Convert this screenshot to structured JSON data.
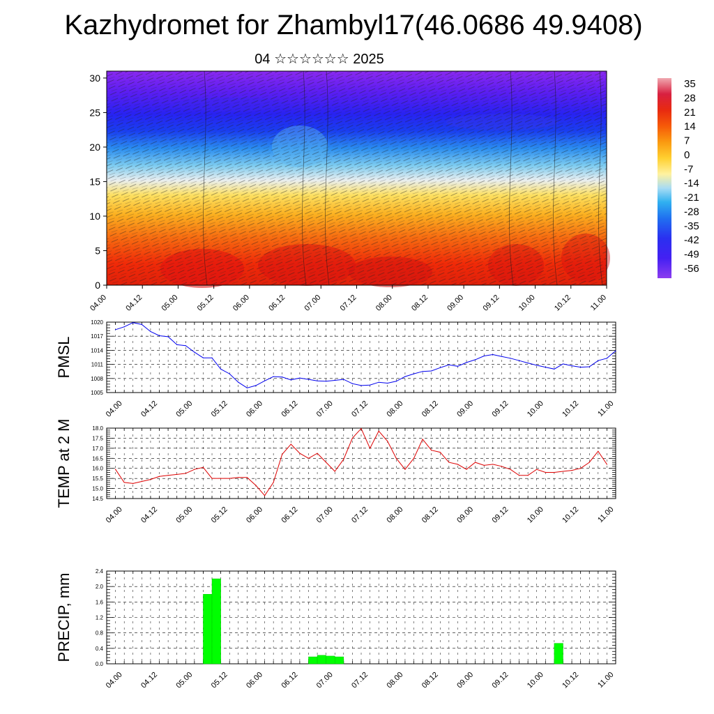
{
  "title": "Kazhydromet for Zhambyl17(46.0686 49.9408)",
  "subtitle": "04 ☆☆☆☆☆☆ 2025",
  "time_labels": [
    "04.00",
    "04.12",
    "05.00",
    "05.12",
    "06.00",
    "06.12",
    "07.00",
    "07.12",
    "08.00",
    "08.12",
    "09.00",
    "09.12",
    "10.00",
    "10.12",
    "11.00"
  ],
  "chart_data": [
    {
      "type": "heatmap",
      "name": "temperature-wind-cross-section",
      "ylim": [
        0,
        31
      ],
      "yticks": [
        0,
        5,
        10,
        15,
        20,
        25,
        30
      ],
      "colorbar": {
        "labels": [
          "35",
          "28",
          "21",
          "14",
          "7",
          "0",
          "-7",
          "-14",
          "-21",
          "-28",
          "-35",
          "-42",
          "-49",
          "-56"
        ],
        "range": [
          -63,
          42
        ]
      }
    },
    {
      "type": "line",
      "name": "pmsl",
      "ylabel": "PMSL",
      "ylim": [
        1005,
        1020
      ],
      "yticks": [
        "1005",
        "1008",
        "1011",
        "1014",
        "1017",
        "1020"
      ],
      "color": "#0000ee",
      "series": [
        {
          "values": [
            1018.4,
            1019.0,
            1019.9,
            1019.5,
            1018.0,
            1017.1,
            1016.9,
            1015.2,
            1015.0,
            1013.6,
            1012.4,
            1012.4,
            1010.0,
            1009.0,
            1007.2,
            1006.0,
            1006.5,
            1007.5,
            1008.4,
            1008.3,
            1007.7,
            1008.1,
            1007.8,
            1007.5,
            1007.4,
            1007.6,
            1007.8,
            1006.9,
            1006.5,
            1006.6,
            1007.2,
            1007.0,
            1007.4,
            1008.4,
            1009.0,
            1009.5,
            1009.6,
            1010.3,
            1010.9,
            1010.6,
            1011.4,
            1012.0,
            1012.8,
            1013.1,
            1012.7,
            1012.3,
            1011.8,
            1011.3,
            1010.8,
            1010.4,
            1010.0,
            1011.1,
            1010.7,
            1010.4,
            1010.5,
            1011.8,
            1012.3,
            1013.9
          ]
        }
      ]
    },
    {
      "type": "line",
      "name": "temp-2m",
      "ylabel": "TEMP at 2 M",
      "ylim": [
        14.5,
        18.0
      ],
      "yticks": [
        "14.5",
        "15.0",
        "15.5",
        "16.0",
        "16.5",
        "17.0",
        "17.5",
        "18.0"
      ],
      "color": "#dd0000",
      "series": [
        {
          "values": [
            15.95,
            15.3,
            15.25,
            15.35,
            15.45,
            15.6,
            15.65,
            15.7,
            15.75,
            15.95,
            16.05,
            15.5,
            15.5,
            15.5,
            15.55,
            15.55,
            15.15,
            14.65,
            15.3,
            16.7,
            17.2,
            16.75,
            16.5,
            16.75,
            16.3,
            15.85,
            16.45,
            17.5,
            17.98,
            17.0,
            17.85,
            17.35,
            16.5,
            15.95,
            16.5,
            17.45,
            16.9,
            16.8,
            16.3,
            16.2,
            15.95,
            16.3,
            16.15,
            16.2,
            16.1,
            15.95,
            15.65,
            15.65,
            15.95,
            15.8,
            15.8,
            15.85,
            15.9,
            16.0,
            16.3,
            16.85,
            16.2
          ]
        }
      ]
    },
    {
      "type": "bar",
      "name": "precip",
      "ylabel": "PRECIP, mm",
      "ylim": [
        0,
        2.4
      ],
      "yticks": [
        "0.0",
        "0.4",
        "0.8",
        "1.2",
        "1.6",
        "2.0",
        "2.4"
      ],
      "color": "#00ff00",
      "bars": [
        {
          "step": 11,
          "value": 1.8
        },
        {
          "step": 12,
          "value": 2.2
        },
        {
          "step": 23,
          "value": 0.18
        },
        {
          "step": 24,
          "value": 0.22
        },
        {
          "step": 25,
          "value": 0.2
        },
        {
          "step": 26,
          "value": 0.18
        },
        {
          "step": 51,
          "value": 0.53
        }
      ]
    }
  ]
}
